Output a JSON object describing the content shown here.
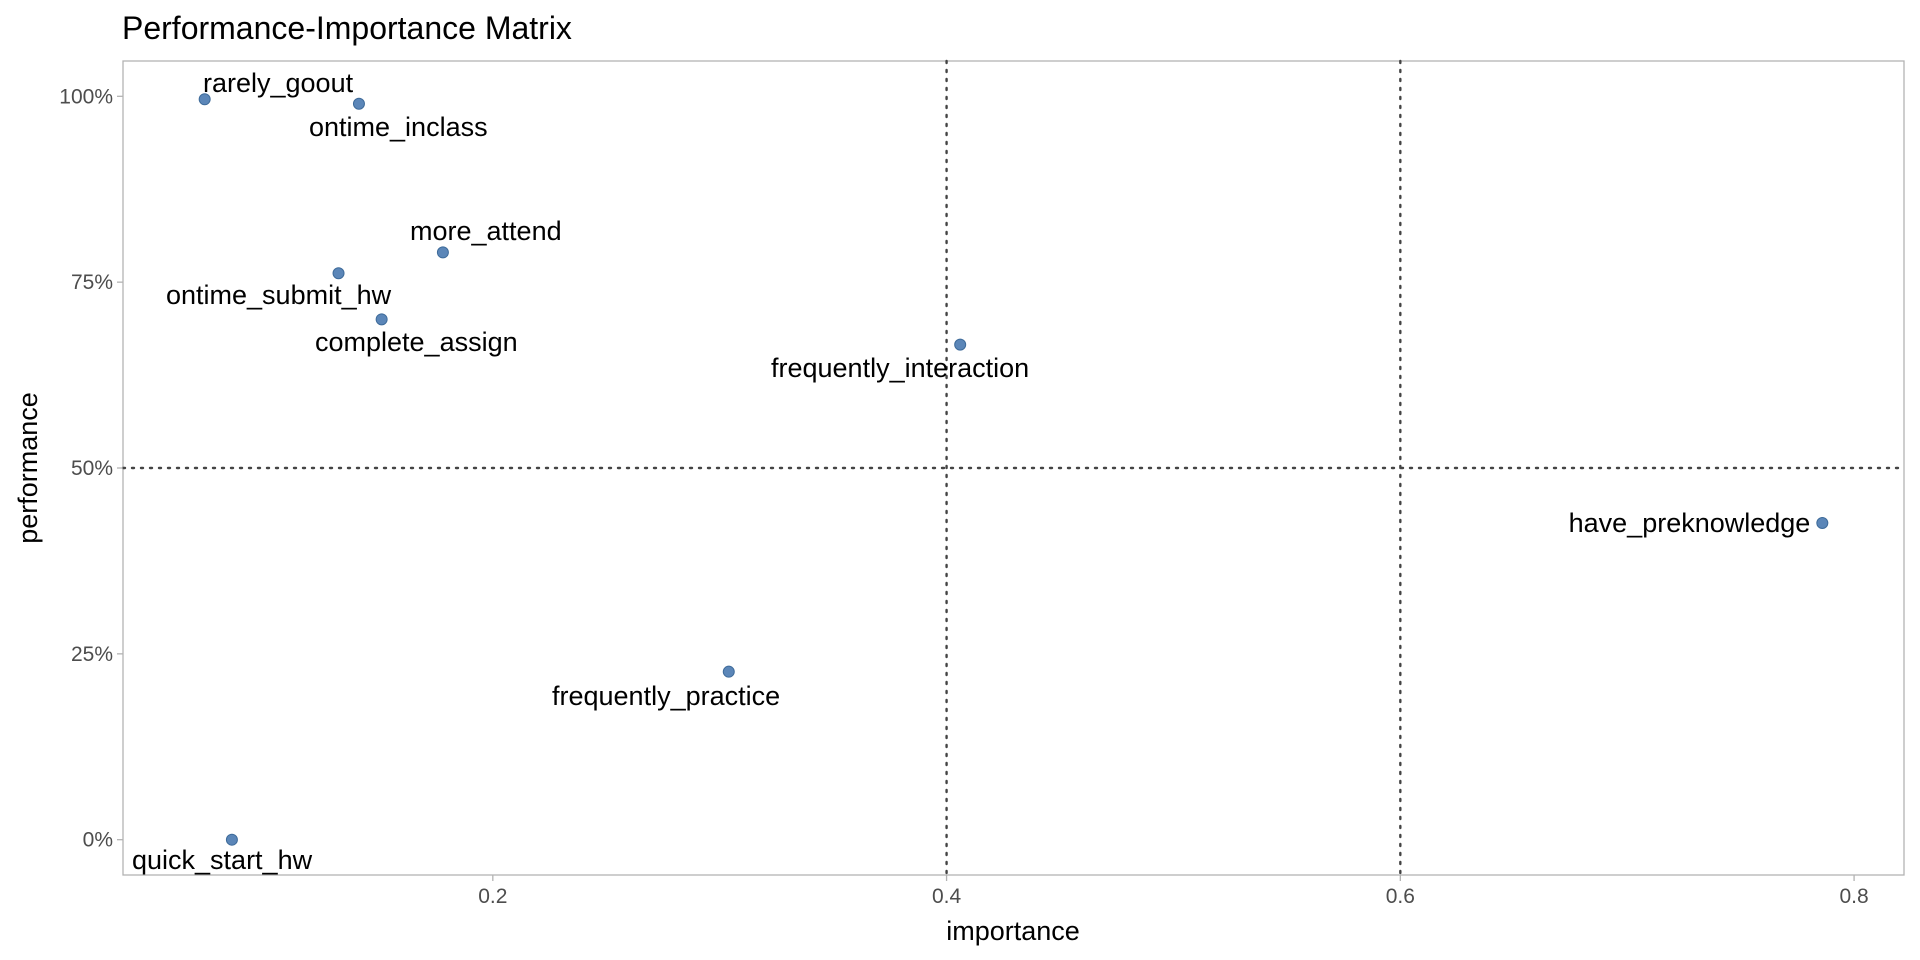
{
  "chart_data": {
    "type": "scatter",
    "title": "Performance-Importance Matrix",
    "xlabel": "importance",
    "ylabel": "performance",
    "xlim": [
      0.037,
      0.822
    ],
    "ylim": [
      -0.0475,
      1.0475
    ],
    "x_ticks": [
      {
        "value": 0.2,
        "label": "0.2"
      },
      {
        "value": 0.4,
        "label": "0.4"
      },
      {
        "value": 0.6,
        "label": "0.6"
      },
      {
        "value": 0.8,
        "label": "0.8"
      }
    ],
    "y_ticks": [
      {
        "value": 0.0,
        "label": "0%"
      },
      {
        "value": 0.25,
        "label": "25%"
      },
      {
        "value": 0.5,
        "label": "50%"
      },
      {
        "value": 0.75,
        "label": "75%"
      },
      {
        "value": 1.0,
        "label": "100%"
      }
    ],
    "reference_lines": {
      "vertical": [
        0.4,
        0.6
      ],
      "horizontal": [
        0.5
      ]
    },
    "grid": false,
    "point_color": "#5b86b8",
    "points": [
      {
        "label": "rarely_goout",
        "x": 0.073,
        "y": 0.996,
        "label_pos": "above-right"
      },
      {
        "label": "ontime_inclass",
        "x": 0.141,
        "y": 0.99,
        "label_pos": "below"
      },
      {
        "label": "more_attend",
        "x": 0.178,
        "y": 0.79,
        "label_pos": "above"
      },
      {
        "label": "ontime_submit_hw",
        "x": 0.132,
        "y": 0.762,
        "label_pos": "below-left"
      },
      {
        "label": "complete_assign",
        "x": 0.151,
        "y": 0.7,
        "label_pos": "below"
      },
      {
        "label": "frequently_interaction",
        "x": 0.406,
        "y": 0.666,
        "label_pos": "below-left"
      },
      {
        "label": "have_preknowledge",
        "x": 0.786,
        "y": 0.426,
        "label_pos": "left"
      },
      {
        "label": "frequently_practice",
        "x": 0.304,
        "y": 0.226,
        "label_pos": "below-left"
      },
      {
        "label": "quick_start_hw",
        "x": 0.085,
        "y": 0.0,
        "label_pos": "below"
      }
    ]
  }
}
